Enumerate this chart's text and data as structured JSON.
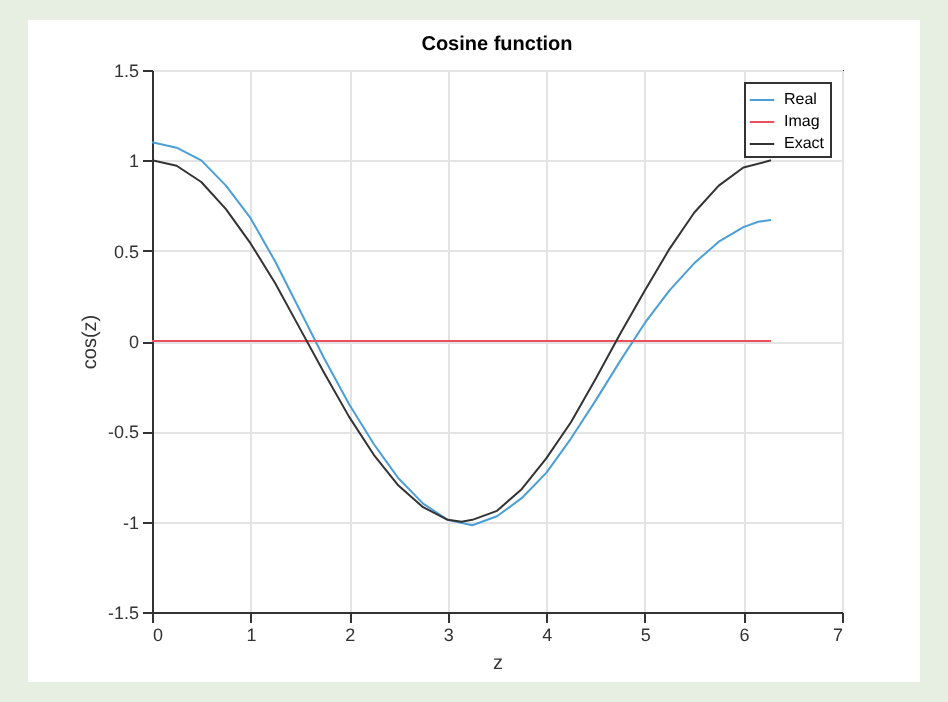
{
  "chart_data": {
    "type": "line",
    "title": "Cosine function",
    "xlabel": "z",
    "ylabel": "cos(z)",
    "xlim": [
      0,
      7
    ],
    "xticks": [
      0,
      1,
      2,
      3,
      4,
      5,
      6,
      7
    ],
    "ylim": [
      -1.5,
      1.5
    ],
    "yticks": [
      -1.5,
      {
        "value": -1,
        "label": "-1"
      },
      -0.5,
      {
        "value": 0,
        "label": "0"
      },
      0.5,
      {
        "value": 1,
        "label": "1"
      },
      1.5
    ],
    "grid": true,
    "legend": "top right",
    "marker": "none",
    "line_style": "solid",
    "series": [
      {
        "name": "Real",
        "color": "#4a9fd6",
        "x": [
          0,
          0.25,
          0.5,
          0.75,
          1,
          1.25,
          1.5,
          1.75,
          2,
          2.25,
          2.5,
          2.75,
          3,
          3.25,
          3.5,
          3.75,
          4,
          4.25,
          4.5,
          4.75,
          5,
          5.25,
          5.5,
          5.75,
          6,
          6.15,
          6.28
        ],
        "values": [
          1.1,
          1.07,
          1.0,
          0.86,
          0.68,
          0.44,
          0.17,
          -0.1,
          -0.35,
          -0.57,
          -0.76,
          -0.9,
          -0.99,
          -1.02,
          -0.97,
          -0.87,
          -0.73,
          -0.54,
          -0.33,
          -0.11,
          0.1,
          0.28,
          0.43,
          0.55,
          0.63,
          0.66,
          0.67
        ]
      },
      {
        "name": "Imag",
        "color": "#e8535b",
        "x": [
          0,
          6.28
        ],
        "values": [
          0,
          0
        ]
      },
      {
        "name": "Exact",
        "color": "#333333",
        "x": [
          0,
          0.25,
          0.5,
          0.75,
          1,
          1.25,
          1.5,
          1.75,
          2,
          2.25,
          2.5,
          2.75,
          3,
          3.14,
          3.25,
          3.5,
          3.75,
          4,
          4.25,
          4.5,
          4.75,
          5,
          5.25,
          5.5,
          5.75,
          6,
          6.28
        ],
        "values": [
          1,
          0.97,
          0.88,
          0.73,
          0.54,
          0.32,
          0.07,
          -0.18,
          -0.42,
          -0.63,
          -0.8,
          -0.92,
          -0.99,
          -1,
          -0.99,
          -0.94,
          -0.82,
          -0.65,
          -0.45,
          -0.21,
          0.04,
          0.28,
          0.51,
          0.71,
          0.86,
          0.96,
          1
        ]
      }
    ]
  }
}
